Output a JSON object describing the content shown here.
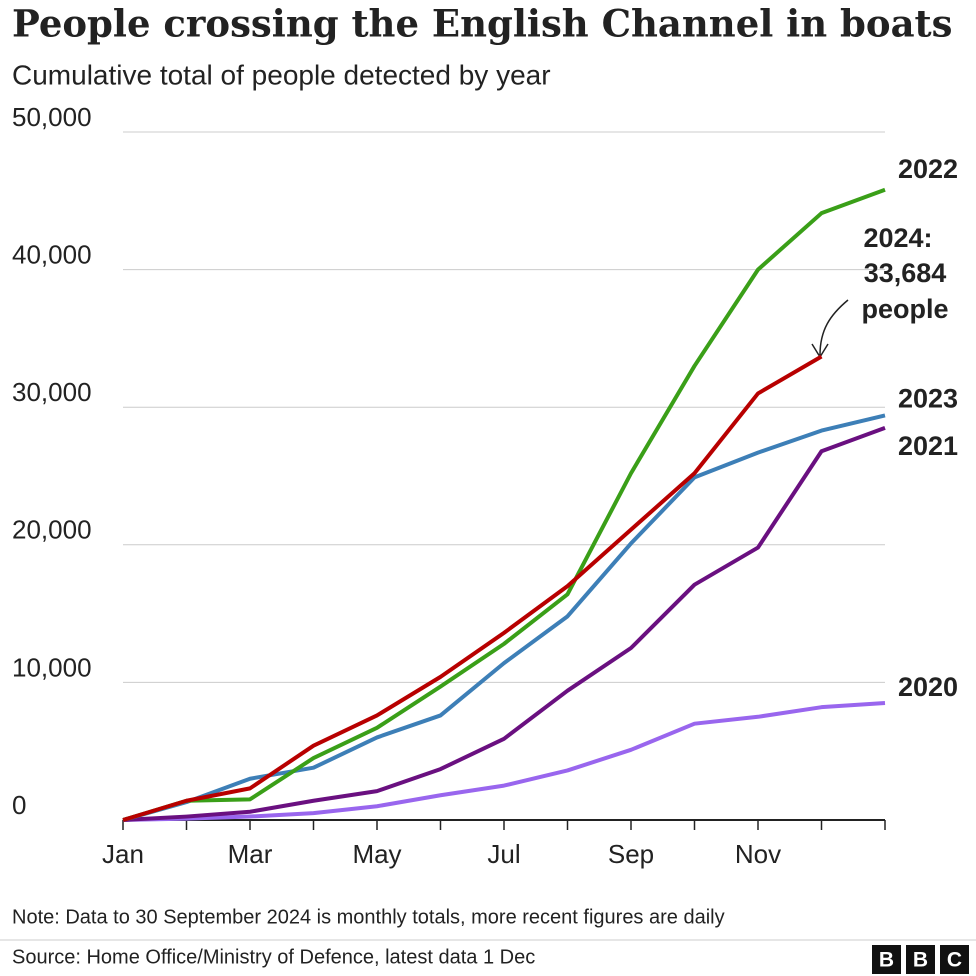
{
  "chart_data": {
    "type": "line",
    "title": "People crossing the English Channel in boats",
    "subtitle": "Cumulative total of people detected by year",
    "categories": [
      "Jan",
      null,
      "Mar",
      null,
      "May",
      null,
      "Jul",
      null,
      "Sep",
      null,
      "Nov",
      null,
      null
    ],
    "ylim": [
      0,
      50000
    ],
    "yticks": [
      0,
      {
        "value": 10000,
        "label": "10,000"
      },
      {
        "value": 20000,
        "label": "20,000"
      },
      {
        "value": 30000,
        "label": "30,000"
      },
      {
        "value": 40000,
        "label": "40,000"
      },
      {
        "value": 50000,
        "label": "50,000"
      }
    ],
    "grid": true,
    "series": [
      {
        "name": "2020",
        "color": "#9966ee",
        "values": [
          0,
          100,
          250,
          500,
          1000,
          1800,
          2500,
          3600,
          5100,
          7000,
          7500,
          8200,
          8500
        ]
      },
      {
        "name": "2021",
        "color": "#6a1080",
        "values": [
          0,
          250,
          600,
          1400,
          2100,
          3700,
          5900,
          9400,
          12500,
          17100,
          19800,
          26800,
          28500
        ]
      },
      {
        "name": "2023",
        "color": "#3d7fb7",
        "values": [
          0,
          1300,
          3000,
          3800,
          6000,
          7600,
          11400,
          14800,
          20100,
          24900,
          26700,
          28300,
          29400
        ]
      },
      {
        "name": "2022",
        "color": "#3a9f18",
        "values": [
          0,
          1400,
          1500,
          4500,
          6700,
          9700,
          12800,
          16400,
          25200,
          33000,
          40000,
          44100,
          45800
        ]
      },
      {
        "name": "2024:",
        "color": "#b80000",
        "values": [
          0,
          1400,
          2300,
          5400,
          7600,
          10400,
          13600,
          17000,
          21100,
          25200,
          31000,
          33684,
          null
        ],
        "value_labels": [
          null,
          null,
          null,
          null,
          null,
          null,
          null,
          null,
          null,
          null,
          null,
          "33,684",
          null
        ]
      }
    ],
    "annotation": "people",
    "note": "Note: Data to 30 September 2024 is monthly totals, more recent figures are daily",
    "source": "Source: Home Office/Ministry of Defence, latest data 1 Dec",
    "logo": [
      "B",
      "B",
      "C"
    ]
  }
}
